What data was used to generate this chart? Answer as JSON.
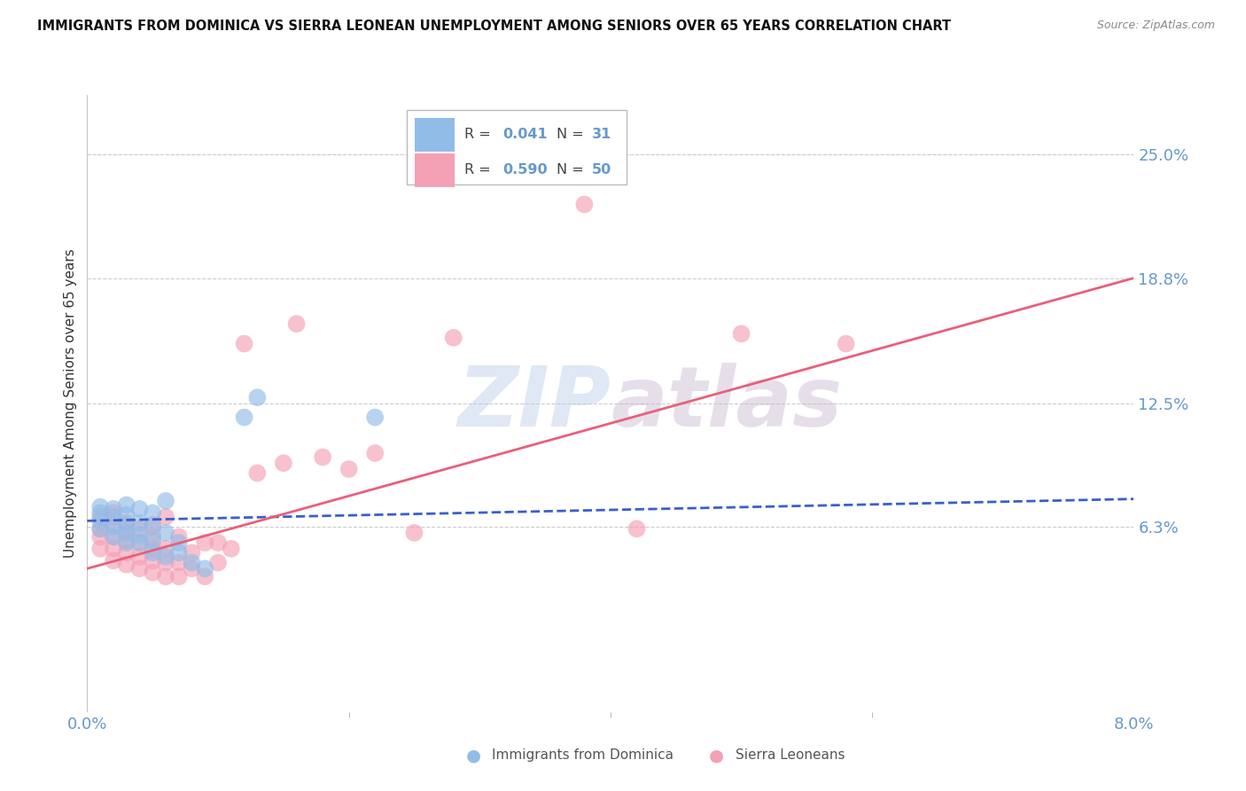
{
  "title": "IMMIGRANTS FROM DOMINICA VS SIERRA LEONEAN UNEMPLOYMENT AMONG SENIORS OVER 65 YEARS CORRELATION CHART",
  "source": "Source: ZipAtlas.com",
  "ylabel": "Unemployment Among Seniors over 65 years",
  "xlabel_blue": "Immigrants from Dominica",
  "xlabel_pink": "Sierra Leoneans",
  "xlim": [
    0.0,
    0.08
  ],
  "ylim": [
    -0.03,
    0.28
  ],
  "yticks": [
    0.063,
    0.125,
    0.188,
    0.25
  ],
  "ytick_labels": [
    "6.3%",
    "12.5%",
    "18.8%",
    "25.0%"
  ],
  "grid_color": "#cccccc",
  "watermark_zip": "ZIP",
  "watermark_atlas": "atlas",
  "blue_color": "#92bce8",
  "pink_color": "#f4a0b5",
  "blue_line_color": "#3a5fcd",
  "pink_line_color": "#e8607a",
  "tick_label_color": "#6699cc",
  "blue_scatter_x": [
    0.001,
    0.001,
    0.001,
    0.001,
    0.002,
    0.002,
    0.002,
    0.002,
    0.003,
    0.003,
    0.003,
    0.003,
    0.003,
    0.004,
    0.004,
    0.004,
    0.004,
    0.005,
    0.005,
    0.005,
    0.005,
    0.006,
    0.006,
    0.006,
    0.007,
    0.007,
    0.008,
    0.009,
    0.012,
    0.013,
    0.022
  ],
  "blue_scatter_y": [
    0.062,
    0.066,
    0.07,
    0.073,
    0.058,
    0.063,
    0.068,
    0.072,
    0.055,
    0.06,
    0.064,
    0.069,
    0.074,
    0.055,
    0.059,
    0.065,
    0.072,
    0.05,
    0.056,
    0.063,
    0.07,
    0.048,
    0.06,
    0.076,
    0.05,
    0.055,
    0.045,
    0.042,
    0.118,
    0.128,
    0.118
  ],
  "pink_scatter_x": [
    0.001,
    0.001,
    0.001,
    0.001,
    0.002,
    0.002,
    0.002,
    0.002,
    0.002,
    0.003,
    0.003,
    0.003,
    0.003,
    0.003,
    0.004,
    0.004,
    0.004,
    0.004,
    0.005,
    0.005,
    0.005,
    0.005,
    0.005,
    0.006,
    0.006,
    0.006,
    0.006,
    0.007,
    0.007,
    0.007,
    0.008,
    0.008,
    0.009,
    0.009,
    0.01,
    0.01,
    0.011,
    0.012,
    0.013,
    0.015,
    0.016,
    0.018,
    0.02,
    0.022,
    0.025,
    0.028,
    0.038,
    0.042,
    0.05,
    0.058
  ],
  "pink_scatter_y": [
    0.052,
    0.058,
    0.062,
    0.068,
    0.046,
    0.052,
    0.058,
    0.064,
    0.07,
    0.044,
    0.05,
    0.056,
    0.06,
    0.065,
    0.042,
    0.048,
    0.055,
    0.062,
    0.04,
    0.046,
    0.052,
    0.058,
    0.064,
    0.038,
    0.045,
    0.052,
    0.068,
    0.038,
    0.045,
    0.058,
    0.042,
    0.05,
    0.038,
    0.055,
    0.045,
    0.055,
    0.052,
    0.155,
    0.09,
    0.095,
    0.165,
    0.098,
    0.092,
    0.1,
    0.06,
    0.158,
    0.225,
    0.062,
    0.16,
    0.155
  ],
  "blue_line_x": [
    0.0,
    0.08
  ],
  "blue_line_y": [
    0.066,
    0.077
  ],
  "pink_line_x": [
    0.0,
    0.08
  ],
  "pink_line_y": [
    0.042,
    0.188
  ],
  "background_color": "#ffffff"
}
